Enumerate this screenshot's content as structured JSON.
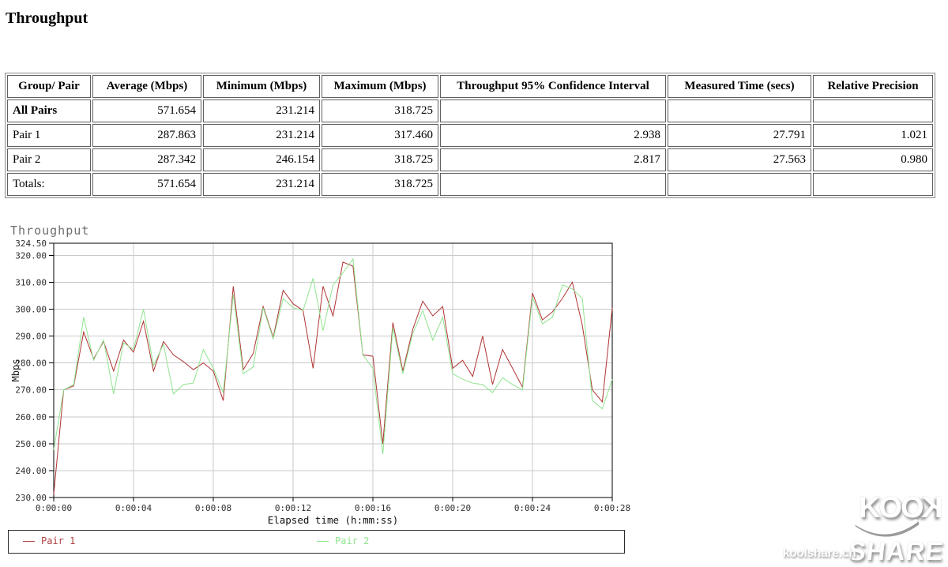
{
  "page": {
    "title": "Throughput"
  },
  "table": {
    "headers": [
      "Group/ Pair",
      "Average (Mbps)",
      "Minimum (Mbps)",
      "Maximum (Mbps)",
      "Throughput 95% Confidence Interval",
      "Measured Time (secs)",
      "Relative Precision"
    ],
    "rows": [
      {
        "label": "All Pairs",
        "bold": true,
        "cells": [
          "571.654",
          "231.214",
          "318.725",
          "",
          "",
          ""
        ]
      },
      {
        "label": "Pair 1",
        "bold": false,
        "cells": [
          "287.863",
          "231.214",
          "317.460",
          "2.938",
          "27.791",
          "1.021"
        ]
      },
      {
        "label": "Pair 2",
        "bold": false,
        "cells": [
          "287.342",
          "246.154",
          "318.725",
          "2.817",
          "27.563",
          "0.980"
        ]
      },
      {
        "label": "Totals:",
        "bold": false,
        "cells": [
          "571.654",
          "231.214",
          "318.725",
          "",
          "",
          ""
        ]
      }
    ]
  },
  "chart_data": {
    "type": "line",
    "title": "Throughput",
    "xlabel": "Elapsed time (h:mm:ss)",
    "ylabel": "Mbps",
    "ylim": [
      230,
      324.5
    ],
    "xlim_seconds": [
      0,
      28
    ],
    "grid": true,
    "legend_position": "bottom",
    "ytick_values": [
      324.5,
      320,
      310,
      300,
      290,
      280,
      270,
      260,
      250,
      240,
      230
    ],
    "ytick_labels": [
      "324.50",
      "320.00",
      "310.00",
      "300.00",
      "290.00",
      "280.00",
      "270.00",
      "260.00",
      "250.00",
      "240.00",
      "230.00"
    ],
    "xtick_values": [
      0,
      4,
      8,
      12,
      16,
      20,
      24,
      28
    ],
    "xtick_labels": [
      "0:00:00",
      "0:00:04",
      "0:00:08",
      "0:00:12",
      "0:00:16",
      "0:00:20",
      "0:00:24",
      "0:00:28"
    ],
    "x": [
      0,
      0.5,
      1,
      1.5,
      2,
      2.5,
      3,
      3.5,
      4,
      4.5,
      5,
      5.5,
      6,
      6.5,
      7,
      7.5,
      8,
      8.5,
      9,
      9.5,
      10,
      10.5,
      11,
      11.5,
      12,
      12.5,
      13,
      13.5,
      14,
      14.5,
      15,
      15.5,
      16,
      16.5,
      17,
      17.5,
      18,
      18.5,
      19,
      19.5,
      20,
      20.5,
      21,
      21.5,
      22,
      22.5,
      23,
      23.5,
      24,
      24.5,
      25,
      25.5,
      26,
      26.5,
      27,
      27.5,
      28
    ],
    "series": [
      {
        "name": "Pair 1",
        "color": "#b03434",
        "values": [
          231.2,
          270,
          271.5,
          291.5,
          281.5,
          288,
          277,
          288.5,
          284,
          295.5,
          277,
          288,
          283,
          280.5,
          277.5,
          280,
          277,
          266,
          308.5,
          277.5,
          283.5,
          301,
          289.5,
          307,
          302,
          299.5,
          278,
          308.5,
          297.5,
          317.5,
          316,
          283,
          282.5,
          250,
          295,
          277,
          292.5,
          303,
          297.5,
          301,
          278,
          281,
          275,
          290,
          272,
          285,
          278,
          271,
          306,
          296,
          299,
          304,
          310,
          294,
          270,
          265.5,
          300.5
        ]
      },
      {
        "name": "Pair 2",
        "color": "#8fe48f",
        "values": [
          247.7,
          270,
          272,
          297,
          281,
          288.5,
          268.5,
          287.5,
          285,
          300,
          279,
          287,
          268.5,
          272,
          272.5,
          285,
          278,
          269,
          305.5,
          276,
          278.5,
          300.5,
          289,
          304,
          300.5,
          299.5,
          311.5,
          292,
          309,
          313.5,
          318.7,
          283,
          278,
          246.2,
          293,
          276,
          291,
          299.5,
          288.5,
          297,
          276,
          274,
          272.5,
          272,
          269,
          274.5,
          272,
          270,
          304.5,
          294.5,
          297,
          309,
          307.5,
          304,
          266,
          263,
          274
        ]
      }
    ]
  },
  "legend": {
    "items": [
      {
        "label": "Pair 1",
        "color": "#b04040"
      },
      {
        "label": "Pair 2",
        "color": "#8fe48f"
      }
    ]
  },
  "watermark": {
    "logo_top": "KOOK",
    "logo_bottom": "SHARE",
    "site": "koolshare.cn"
  }
}
